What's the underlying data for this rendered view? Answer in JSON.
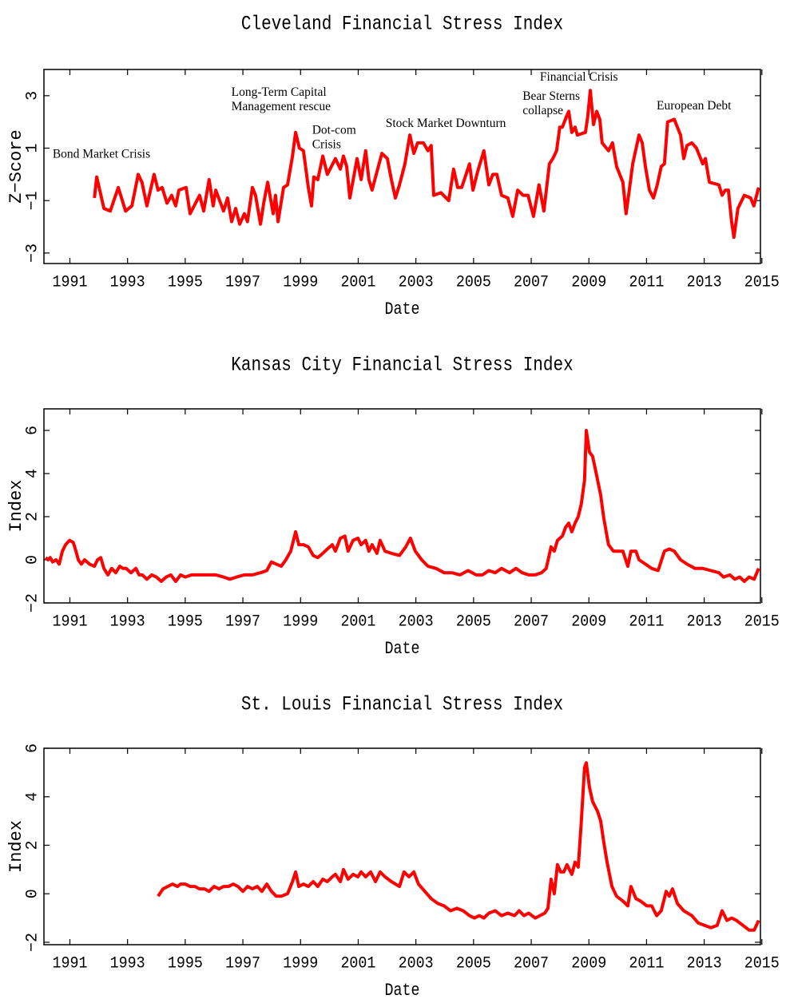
{
  "chart_data": [
    {
      "type": "line",
      "title": "Cleveland Financial Stress Index",
      "xlabel": "Date",
      "ylabel": "Z−Score",
      "color": "#ff0000",
      "xlim": [
        1990.1,
        2014.95
      ],
      "xticks": [
        1991,
        1993,
        1995,
        1997,
        1999,
        2001,
        2003,
        2005,
        2007,
        2009,
        2011,
        2013,
        2015
      ],
      "ylim": [
        -3.4,
        4
      ],
      "yticks": [
        {
          "value": -3,
          "label": "−3"
        },
        {
          "value": -1,
          "label": "−1"
        },
        1,
        3
      ],
      "x": [
        1991.85,
        1991.93,
        1992.18,
        1992.4,
        1992.68,
        1992.93,
        1993.15,
        1993.37,
        1993.5,
        1993.67,
        1993.92,
        1994.06,
        1994.2,
        1994.37,
        1994.53,
        1994.67,
        1994.78,
        1995.03,
        1995.17,
        1995.5,
        1995.64,
        1995.83,
        1995.97,
        1996.06,
        1996.33,
        1996.47,
        1996.61,
        1996.75,
        1996.89,
        1997.05,
        1997.16,
        1997.33,
        1997.44,
        1997.61,
        1997.72,
        1997.86,
        1998.05,
        1998.13,
        1998.22,
        1998.41,
        1998.55,
        1998.72,
        1998.83,
        1998.96,
        1999.1,
        1999.27,
        1999.38,
        1999.46,
        1999.6,
        1999.77,
        1999.93,
        2000.21,
        2000.38,
        2000.49,
        2000.6,
        2000.71,
        2000.96,
        2001.1,
        2001.26,
        2001.37,
        2001.48,
        2001.65,
        2001.82,
        2002.01,
        2002.15,
        2002.29,
        2002.43,
        2002.62,
        2002.79,
        2002.93,
        2003.06,
        2003.26,
        2003.42,
        2003.53,
        2003.62,
        2003.87,
        2004.14,
        2004.31,
        2004.45,
        2004.59,
        2004.86,
        2004.98,
        2005.14,
        2005.36,
        2005.53,
        2005.67,
        2005.81,
        2005.97,
        2006.19,
        2006.36,
        2006.53,
        2006.72,
        2006.89,
        2007.08,
        2007.27,
        2007.44,
        2007.63,
        2007.75,
        2007.88,
        2007.99,
        2008.08,
        2008.22,
        2008.3,
        2008.41,
        2008.52,
        2008.6,
        2008.88,
        2008.96,
        2009.05,
        2009.16,
        2009.27,
        2009.38,
        2009.46,
        2009.68,
        2009.82,
        2009.96,
        2010.18,
        2010.29,
        2010.4,
        2010.52,
        2010.74,
        2010.85,
        2010.96,
        2011.1,
        2011.24,
        2011.37,
        2011.51,
        2011.62,
        2011.73,
        2011.96,
        2012.18,
        2012.29,
        2012.4,
        2012.57,
        2012.73,
        2012.95,
        2013.04,
        2013.18,
        2013.51,
        2013.62,
        2013.73,
        2013.84,
        2013.95,
        2014.03,
        2014.17,
        2014.39,
        2014.61,
        2014.72,
        2014.89
      ],
      "values": [
        -0.9,
        -0.1,
        -1.3,
        -1.4,
        -0.5,
        -1.4,
        -1.2,
        0,
        -0.3,
        -1.2,
        0,
        -0.6,
        -0.5,
        -1.1,
        -0.8,
        -1.2,
        -0.6,
        -0.5,
        -1.5,
        -0.8,
        -1.4,
        -0.2,
        -1.2,
        -0.6,
        -1.4,
        -0.9,
        -1.8,
        -1.3,
        -1.9,
        -1.5,
        -1.8,
        -0.5,
        -0.8,
        -1.9,
        -1.1,
        -0.3,
        -1.5,
        -0.8,
        -1.8,
        -0.5,
        -0.4,
        0.7,
        1.6,
        1.0,
        0.9,
        -0.5,
        -1.2,
        -0.1,
        -0.2,
        0.7,
        0,
        0.6,
        0.2,
        0.7,
        0.3,
        -0.9,
        0.6,
        -0.2,
        0.9,
        -0.2,
        -0.6,
        0.1,
        0.8,
        0.6,
        -0.2,
        -0.9,
        -0.4,
        0.4,
        1.5,
        0.8,
        1.2,
        1.2,
        0.9,
        1.1,
        -0.8,
        -0.7,
        -1.0,
        0.2,
        -0.5,
        -0.5,
        0.4,
        -0.6,
        0.1,
        0.9,
        -0.4,
        0,
        0,
        -0.8,
        -0.9,
        -1.6,
        -0.6,
        -0.8,
        -0.8,
        -1.6,
        -0.4,
        -1.4,
        0.4,
        0.6,
        0.9,
        1.8,
        1.8,
        2.2,
        2.4,
        1.6,
        1.8,
        1.5,
        1.6,
        2.2,
        3.2,
        1.9,
        2.4,
        2.1,
        1.2,
        0.9,
        1.2,
        0.3,
        -0.3,
        -1.5,
        -0.6,
        0.4,
        1.5,
        1.2,
        0.3,
        -0.6,
        -0.9,
        -0.4,
        0.3,
        0.4,
        2.0,
        2.1,
        1.5,
        0.6,
        1.1,
        1.2,
        1.0,
        0.4,
        0.6,
        -0.3,
        -0.4,
        -0.8,
        -0.6,
        -0.6,
        -1.8,
        -2.4,
        -1.3,
        -0.8,
        -0.9,
        -1.2,
        -0.5
      ],
      "annotations": [
        {
          "text": [
            "Bond Market Crisis"
          ],
          "x": 1990.4,
          "y": 0.64
        },
        {
          "text": [
            "Long-Term Capital",
            "Management rescue"
          ],
          "x": 1996.6,
          "y": 3.0
        },
        {
          "text": [
            "Dot-com",
            "Crisis"
          ],
          "x": 1999.4,
          "y": 1.55
        },
        {
          "text": [
            "Stock Market Downturn"
          ],
          "x": 2001.95,
          "y": 1.8
        },
        {
          "text": [
            "Bear Sterns",
            "collapse"
          ],
          "x": 2006.7,
          "y": 2.85
        },
        {
          "text": [
            "Financial Crisis"
          ],
          "x": 2007.3,
          "y": 3.58
        },
        {
          "text": [
            "European Debt"
          ],
          "x": 2011.35,
          "y": 2.48
        }
      ]
    },
    {
      "type": "line",
      "title": "Kansas City Financial Stress Index",
      "xlabel": "Date",
      "ylabel": "Index",
      "color": "#ff0000",
      "xlim": [
        1990.1,
        2014.95
      ],
      "xticks": [
        1991,
        1993,
        1995,
        1997,
        1999,
        2001,
        2003,
        2005,
        2007,
        2009,
        2011,
        2013,
        2015
      ],
      "ylim": [
        -2,
        7
      ],
      "yticks": [
        {
          "value": -2,
          "label": "−2"
        },
        0,
        2,
        4,
        6
      ],
      "x": [
        1990.16,
        1990.24,
        1990.32,
        1990.4,
        1990.52,
        1990.63,
        1990.74,
        1990.85,
        1990.99,
        1991.12,
        1991.21,
        1991.29,
        1991.4,
        1991.51,
        1991.68,
        1991.85,
        1991.96,
        1992.07,
        1992.18,
        1992.32,
        1992.45,
        1992.59,
        1992.73,
        1992.84,
        1992.95,
        1993.12,
        1993.29,
        1993.4,
        1993.51,
        1993.67,
        1993.84,
        1994.0,
        1994.17,
        1994.34,
        1994.5,
        1994.67,
        1994.84,
        1995.0,
        1995.22,
        1995.5,
        1995.78,
        1996.06,
        1996.33,
        1996.55,
        1996.78,
        1997.05,
        1997.33,
        1997.61,
        1997.83,
        1997.99,
        1998.16,
        1998.33,
        1998.49,
        1998.66,
        1998.83,
        1998.94,
        1999.1,
        1999.27,
        1999.44,
        1999.6,
        1999.77,
        1999.93,
        2000.1,
        2000.21,
        2000.38,
        2000.54,
        2000.65,
        2000.82,
        2000.99,
        2001.1,
        2001.26,
        2001.37,
        2001.48,
        2001.65,
        2001.76,
        2001.93,
        2002.15,
        2002.43,
        2002.65,
        2002.81,
        2002.98,
        2003.2,
        2003.42,
        2003.7,
        2003.98,
        2004.25,
        2004.53,
        2004.81,
        2005.09,
        2005.31,
        2005.53,
        2005.75,
        2005.97,
        2006.25,
        2006.47,
        2006.69,
        2006.91,
        2007.14,
        2007.36,
        2007.52,
        2007.69,
        2007.8,
        2007.91,
        2008.08,
        2008.19,
        2008.3,
        2008.41,
        2008.52,
        2008.63,
        2008.74,
        2008.85,
        2008.91,
        2009.02,
        2009.13,
        2009.24,
        2009.41,
        2009.52,
        2009.68,
        2009.85,
        2010.02,
        2010.18,
        2010.35,
        2010.46,
        2010.63,
        2010.74,
        2010.96,
        2011.18,
        2011.4,
        2011.62,
        2011.79,
        2011.96,
        2012.18,
        2012.4,
        2012.68,
        2012.95,
        2013.23,
        2013.51,
        2013.67,
        2013.89,
        2014.06,
        2014.23,
        2014.39,
        2014.56,
        2014.73,
        2014.89
      ],
      "values": [
        0.1,
        0,
        0.1,
        -0.1,
        0,
        -0.2,
        0.4,
        0.7,
        0.9,
        0.8,
        0.4,
        0,
        -0.2,
        0,
        -0.2,
        -0.3,
        0,
        0.1,
        -0.4,
        -0.7,
        -0.4,
        -0.6,
        -0.3,
        -0.4,
        -0.4,
        -0.6,
        -0.4,
        -0.7,
        -0.7,
        -0.9,
        -0.7,
        -0.8,
        -1.0,
        -0.8,
        -0.7,
        -1.0,
        -0.7,
        -0.8,
        -0.7,
        -0.7,
        -0.7,
        -0.7,
        -0.8,
        -0.9,
        -0.8,
        -0.7,
        -0.7,
        -0.6,
        -0.5,
        -0.1,
        -0.2,
        -0.3,
        0,
        0.4,
        1.3,
        0.7,
        0.7,
        0.6,
        0.2,
        0.1,
        0.3,
        0.5,
        0.7,
        0.4,
        1.0,
        1.1,
        0.4,
        0.9,
        1.0,
        0.7,
        0.9,
        0.4,
        0.7,
        0.3,
        0.9,
        0.4,
        0.3,
        0.2,
        0.6,
        1.0,
        0.4,
        0,
        -0.3,
        -0.4,
        -0.6,
        -0.6,
        -0.7,
        -0.5,
        -0.7,
        -0.7,
        -0.5,
        -0.6,
        -0.4,
        -0.6,
        -0.4,
        -0.6,
        -0.7,
        -0.7,
        -0.6,
        -0.4,
        0.6,
        0.4,
        0.9,
        1.1,
        1.5,
        1.7,
        1.3,
        1.7,
        2.0,
        2.6,
        3.7,
        6.0,
        5.0,
        4.8,
        4.1,
        3.0,
        1.9,
        0.7,
        0.4,
        0.4,
        0.4,
        -0.3,
        0.4,
        0.4,
        0,
        -0.2,
        -0.4,
        -0.5,
        0.4,
        0.5,
        0.4,
        0,
        -0.2,
        -0.4,
        -0.4,
        -0.5,
        -0.6,
        -0.8,
        -0.7,
        -0.9,
        -0.8,
        -1.0,
        -0.8,
        -0.9,
        -0.4
      ]
    },
    {
      "type": "line",
      "title": "St. Louis Financial Stress Index",
      "xlabel": "Date",
      "ylabel": "Index",
      "color": "#ff0000",
      "xlim": [
        1990.1,
        2014.95
      ],
      "xticks": [
        1991,
        1993,
        1995,
        1997,
        1999,
        2001,
        2003,
        2005,
        2007,
        2009,
        2011,
        2013,
        2015
      ],
      "ylim": [
        -2.1,
        6
      ],
      "yticks": [
        {
          "value": -2,
          "label": "−2"
        },
        0,
        2,
        4,
        6
      ],
      "x": [
        1994.06,
        1994.23,
        1994.39,
        1994.56,
        1994.73,
        1994.84,
        1995.0,
        1995.17,
        1995.34,
        1995.5,
        1995.67,
        1995.83,
        1996.0,
        1996.17,
        1996.33,
        1996.5,
        1996.67,
        1996.83,
        1997.0,
        1997.16,
        1997.33,
        1997.5,
        1997.66,
        1997.83,
        1997.99,
        1998.16,
        1998.33,
        1998.55,
        1998.72,
        1998.83,
        1998.94,
        1999.1,
        1999.27,
        1999.44,
        1999.6,
        1999.77,
        1999.93,
        2000.1,
        2000.21,
        2000.38,
        2000.49,
        2000.65,
        2000.82,
        2000.99,
        2001.1,
        2001.26,
        2001.43,
        2001.6,
        2001.76,
        2001.93,
        2002.15,
        2002.43,
        2002.59,
        2002.76,
        2002.93,
        2003.09,
        2003.31,
        2003.53,
        2003.76,
        2003.98,
        2004.2,
        2004.42,
        2004.64,
        2004.86,
        2005.03,
        2005.2,
        2005.36,
        2005.53,
        2005.75,
        2005.97,
        2006.19,
        2006.42,
        2006.58,
        2006.75,
        2006.91,
        2007.14,
        2007.3,
        2007.47,
        2007.58,
        2007.69,
        2007.8,
        2007.91,
        2008.02,
        2008.13,
        2008.24,
        2008.41,
        2008.52,
        2008.63,
        2008.74,
        2008.85,
        2008.91,
        2009.02,
        2009.13,
        2009.3,
        2009.41,
        2009.52,
        2009.63,
        2009.8,
        2009.96,
        2010.18,
        2010.35,
        2010.46,
        2010.63,
        2010.79,
        2011.01,
        2011.18,
        2011.35,
        2011.51,
        2011.68,
        2011.79,
        2011.9,
        2012.07,
        2012.29,
        2012.57,
        2012.79,
        2013.01,
        2013.23,
        2013.45,
        2013.62,
        2013.79,
        2013.95,
        2014.12,
        2014.34,
        2014.56,
        2014.73,
        2014.89
      ],
      "values": [
        -0.1,
        0.2,
        0.3,
        0.4,
        0.3,
        0.4,
        0.4,
        0.3,
        0.3,
        0.2,
        0.2,
        0.1,
        0.3,
        0.2,
        0.3,
        0.3,
        0.4,
        0.3,
        0.1,
        0.3,
        0.2,
        0.3,
        0.1,
        0.4,
        0.1,
        -0.1,
        -0.1,
        0,
        0.5,
        0.9,
        0.3,
        0.4,
        0.3,
        0.5,
        0.3,
        0.6,
        0.5,
        0.7,
        0.8,
        0.5,
        1.0,
        0.6,
        0.8,
        0.7,
        0.9,
        0.7,
        0.9,
        0.5,
        0.9,
        0.7,
        0.5,
        0.3,
        0.9,
        0.7,
        0.9,
        0.4,
        0.1,
        -0.2,
        -0.4,
        -0.5,
        -0.7,
        -0.6,
        -0.7,
        -0.9,
        -1.0,
        -0.9,
        -1.0,
        -0.8,
        -0.7,
        -0.9,
        -0.8,
        -0.9,
        -0.7,
        -0.9,
        -0.8,
        -1.0,
        -0.9,
        -0.8,
        -0.6,
        0.6,
        0,
        1.2,
        0.9,
        0.9,
        1.2,
        0.8,
        1.3,
        1.1,
        3.0,
        5.2,
        5.4,
        4.4,
        3.8,
        3.4,
        3.0,
        2.1,
        1.3,
        0.3,
        -0.1,
        -0.3,
        -0.5,
        0.3,
        -0.2,
        -0.3,
        -0.5,
        -0.5,
        -0.9,
        -0.7,
        0.1,
        -0.1,
        0.2,
        -0.4,
        -0.7,
        -0.9,
        -1.2,
        -1.3,
        -1.4,
        -1.3,
        -0.7,
        -1.1,
        -1.0,
        -1.1,
        -1.3,
        -1.5,
        -1.5,
        -1.1
      ]
    }
  ]
}
